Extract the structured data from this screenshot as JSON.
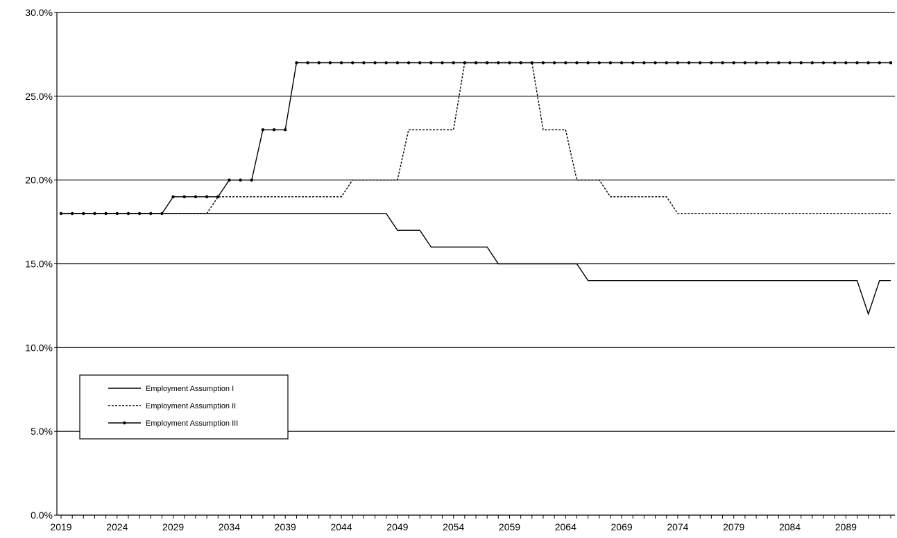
{
  "chart_data": {
    "type": "line",
    "title": "",
    "xlabel": "",
    "ylabel": "",
    "x": [
      2019,
      2020,
      2021,
      2022,
      2023,
      2024,
      2025,
      2026,
      2027,
      2028,
      2029,
      2030,
      2031,
      2032,
      2033,
      2034,
      2035,
      2036,
      2037,
      2038,
      2039,
      2040,
      2041,
      2042,
      2043,
      2044,
      2045,
      2046,
      2047,
      2048,
      2049,
      2050,
      2051,
      2052,
      2053,
      2054,
      2055,
      2056,
      2057,
      2058,
      2059,
      2060,
      2061,
      2062,
      2063,
      2064,
      2065,
      2066,
      2067,
      2068,
      2069,
      2070,
      2071,
      2072,
      2073,
      2074,
      2075,
      2076,
      2077,
      2078,
      2079,
      2080,
      2081,
      2082,
      2083,
      2084,
      2085,
      2086,
      2087,
      2088,
      2089,
      2090,
      2091,
      2092,
      2093
    ],
    "x_ticks": [
      2019,
      2024,
      2029,
      2034,
      2039,
      2044,
      2049,
      2054,
      2059,
      2064,
      2069,
      2074,
      2079,
      2084,
      2089
    ],
    "x_tick_labels": [
      "2019",
      "2024",
      "2029",
      "2034",
      "2039",
      "2044",
      "2049",
      "2054",
      "2059",
      "2064",
      "2069",
      "2074",
      "2079",
      "2084",
      "2089"
    ],
    "ylim": [
      0,
      30
    ],
    "y_ticks": [
      0,
      5,
      10,
      15,
      20,
      25,
      30
    ],
    "y_tick_labels": [
      "0.0%",
      "5.0%",
      "10.0%",
      "15.0%",
      "20.0%",
      "25.0%",
      "30.0%"
    ],
    "grid": "horizontal",
    "legend_position": "lower-left",
    "series": [
      {
        "name": "Employment Assumption I",
        "style": "solid",
        "color": "#000000",
        "values": [
          18,
          18,
          18,
          18,
          18,
          18,
          18,
          18,
          18,
          18,
          18,
          18,
          18,
          18,
          18,
          18,
          18,
          18,
          18,
          18,
          18,
          18,
          18,
          18,
          18,
          18,
          18,
          18,
          18,
          18,
          17,
          17,
          17,
          16,
          16,
          16,
          16,
          16,
          16,
          15,
          15,
          15,
          15,
          15,
          15,
          15,
          15,
          14,
          14,
          14,
          14,
          14,
          14,
          14,
          14,
          14,
          14,
          14,
          14,
          14,
          14,
          14,
          14,
          14,
          14,
          14,
          14,
          14,
          14,
          14,
          14,
          14,
          12,
          14,
          14
        ]
      },
      {
        "name": "Employment Assumption II",
        "style": "dashed",
        "color": "#000000",
        "values": [
          18,
          18,
          18,
          18,
          18,
          18,
          18,
          18,
          18,
          18,
          18,
          18,
          18,
          18,
          19,
          19,
          19,
          19,
          19,
          19,
          19,
          19,
          19,
          19,
          19,
          19,
          20,
          20,
          20,
          20,
          20,
          23,
          23,
          23,
          23,
          23,
          27,
          27,
          27,
          27,
          27,
          27,
          27,
          23,
          23,
          23,
          20,
          20,
          20,
          19,
          19,
          19,
          19,
          19,
          19,
          18,
          18,
          18,
          18,
          18,
          18,
          18,
          18,
          18,
          18,
          18,
          18,
          18,
          18,
          18,
          18,
          18,
          18,
          18,
          18
        ]
      },
      {
        "name": "Employment Assumption III",
        "style": "solid-marker",
        "color": "#000000",
        "values": [
          18,
          18,
          18,
          18,
          18,
          18,
          18,
          18,
          18,
          18,
          19,
          19,
          19,
          19,
          19,
          20,
          20,
          20,
          23,
          23,
          23,
          27,
          27,
          27,
          27,
          27,
          27,
          27,
          27,
          27,
          27,
          27,
          27,
          27,
          27,
          27,
          27,
          27,
          27,
          27,
          27,
          27,
          27,
          27,
          27,
          27,
          27,
          27,
          27,
          27,
          27,
          27,
          27,
          27,
          27,
          27,
          27,
          27,
          27,
          27,
          27,
          27,
          27,
          27,
          27,
          27,
          27,
          27,
          27,
          27,
          27,
          27,
          27,
          27,
          27
        ]
      }
    ]
  }
}
